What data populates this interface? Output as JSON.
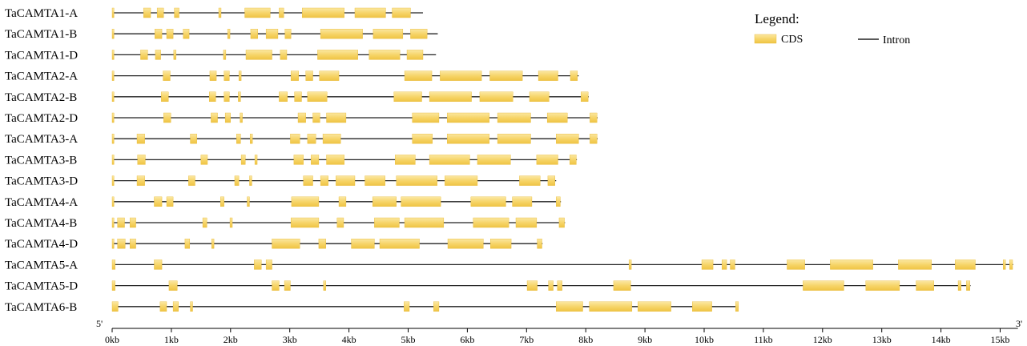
{
  "legend": {
    "title": "Legend:",
    "cds_label": "CDS",
    "intron_label": "Intron"
  },
  "axis": {
    "start_label": "5'",
    "end_label": "3'",
    "unit": "kb",
    "ticks": [
      "0kb",
      "1kb",
      "2kb",
      "3kb",
      "4kb",
      "5kb",
      "6kb",
      "7kb",
      "8kb",
      "9kb",
      "10kb",
      "11kb",
      "12kb",
      "13kb",
      "14kb",
      "15kb"
    ]
  },
  "colors": {
    "cds": "#f6d365",
    "cds_edge": "#e8b830",
    "intron": "#222222",
    "axis": "#000000"
  },
  "genes": [
    {
      "name": "TaCAMTA1-A",
      "length": 5.25,
      "exons": [
        [
          0,
          0.03
        ],
        [
          0.53,
          0.65
        ],
        [
          0.76,
          0.87
        ],
        [
          1.05,
          1.13
        ],
        [
          1.8,
          1.84
        ],
        [
          2.24,
          2.67
        ],
        [
          2.82,
          2.9
        ],
        [
          3.21,
          3.92
        ],
        [
          4.1,
          4.62
        ],
        [
          4.73,
          5.04
        ]
      ]
    },
    {
      "name": "TaCAMTA1-B",
      "length": 5.5,
      "exons": [
        [
          0,
          0.03
        ],
        [
          0.72,
          0.84
        ],
        [
          0.92,
          1.03
        ],
        [
          1.2,
          1.3
        ],
        [
          1.95,
          1.99
        ],
        [
          2.34,
          2.46
        ],
        [
          2.6,
          2.8
        ],
        [
          2.92,
          3.02
        ],
        [
          3.52,
          4.23
        ],
        [
          4.41,
          4.91
        ],
        [
          5.04,
          5.32
        ]
      ]
    },
    {
      "name": "TaCAMTA1-D",
      "length": 5.47,
      "exons": [
        [
          0,
          0.03
        ],
        [
          0.48,
          0.6
        ],
        [
          0.73,
          0.82
        ],
        [
          1.04,
          1.08
        ],
        [
          1.88,
          1.92
        ],
        [
          2.26,
          2.7
        ],
        [
          2.84,
          2.95
        ],
        [
          3.47,
          4.15
        ],
        [
          4.34,
          4.86
        ],
        [
          4.98,
          5.25
        ]
      ]
    },
    {
      "name": "TaCAMTA2-A",
      "length": 7.88,
      "exons": [
        [
          0,
          0.03
        ],
        [
          0.86,
          0.98
        ],
        [
          1.65,
          1.76
        ],
        [
          1.89,
          1.98
        ],
        [
          2.14,
          2.18
        ],
        [
          3.02,
          3.15
        ],
        [
          3.27,
          3.39
        ],
        [
          3.5,
          3.83
        ],
        [
          4.94,
          5.4
        ],
        [
          5.54,
          6.24
        ],
        [
          6.38,
          6.93
        ],
        [
          7.2,
          7.53
        ],
        [
          7.74,
          7.86
        ]
      ]
    },
    {
      "name": "TaCAMTA2-B",
      "length": 8.05,
      "exons": [
        [
          0,
          0.03
        ],
        [
          0.83,
          0.95
        ],
        [
          1.64,
          1.75
        ],
        [
          1.89,
          1.98
        ],
        [
          2.13,
          2.17
        ],
        [
          2.82,
          2.96
        ],
        [
          3.08,
          3.2
        ],
        [
          3.3,
          3.63
        ],
        [
          4.76,
          5.23
        ],
        [
          5.36,
          6.07
        ],
        [
          6.21,
          6.77
        ],
        [
          7.05,
          7.38
        ],
        [
          7.92,
          8.04
        ]
      ]
    },
    {
      "name": "TaCAMTA2-D",
      "length": 8.2,
      "exons": [
        [
          0,
          0.03
        ],
        [
          0.87,
          0.99
        ],
        [
          1.67,
          1.78
        ],
        [
          1.91,
          2.0
        ],
        [
          2.16,
          2.2
        ],
        [
          3.14,
          3.27
        ],
        [
          3.39,
          3.51
        ],
        [
          3.62,
          3.95
        ],
        [
          5.07,
          5.52
        ],
        [
          5.66,
          6.37
        ],
        [
          6.51,
          7.07
        ],
        [
          7.35,
          7.69
        ],
        [
          8.07,
          8.19
        ]
      ]
    },
    {
      "name": "TaCAMTA3-A",
      "length": 8.2,
      "exons": [
        [
          0,
          0.03
        ],
        [
          0.42,
          0.55
        ],
        [
          1.32,
          1.43
        ],
        [
          2.1,
          2.17
        ],
        [
          2.33,
          2.37
        ],
        [
          3.01,
          3.17
        ],
        [
          3.3,
          3.44
        ],
        [
          3.56,
          3.86
        ],
        [
          5.07,
          5.41
        ],
        [
          5.66,
          6.37
        ],
        [
          6.51,
          7.07
        ],
        [
          7.5,
          7.88
        ],
        [
          8.07,
          8.19
        ]
      ]
    },
    {
      "name": "TaCAMTA3-B",
      "length": 7.85,
      "exons": [
        [
          0,
          0.03
        ],
        [
          0.43,
          0.56
        ],
        [
          1.5,
          1.61
        ],
        [
          2.18,
          2.25
        ],
        [
          2.41,
          2.45
        ],
        [
          3.07,
          3.23
        ],
        [
          3.36,
          3.49
        ],
        [
          3.62,
          3.92
        ],
        [
          4.78,
          5.12
        ],
        [
          5.36,
          6.04
        ],
        [
          6.17,
          6.73
        ],
        [
          7.17,
          7.53
        ],
        [
          7.73,
          7.84
        ]
      ]
    },
    {
      "name": "TaCAMTA3-D",
      "length": 7.5,
      "exons": [
        [
          0,
          0.03
        ],
        [
          0.42,
          0.55
        ],
        [
          1.29,
          1.4
        ],
        [
          2.07,
          2.14
        ],
        [
          2.32,
          2.36
        ],
        [
          3.23,
          3.39
        ],
        [
          3.52,
          3.65
        ],
        [
          3.78,
          4.1
        ],
        [
          4.27,
          4.61
        ],
        [
          4.8,
          5.49
        ],
        [
          5.62,
          6.17
        ],
        [
          6.88,
          7.23
        ],
        [
          7.36,
          7.48
        ]
      ]
    },
    {
      "name": "TaCAMTA4-A",
      "length": 7.58,
      "exons": [
        [
          0,
          0.03
        ],
        [
          0.71,
          0.84
        ],
        [
          0.92,
          1.03
        ],
        [
          1.83,
          1.89
        ],
        [
          2.28,
          2.32
        ],
        [
          3.03,
          3.49
        ],
        [
          3.83,
          3.95
        ],
        [
          4.4,
          4.8
        ],
        [
          4.88,
          5.55
        ],
        [
          6.06,
          6.65
        ],
        [
          6.76,
          7.09
        ],
        [
          7.5,
          7.57
        ]
      ]
    },
    {
      "name": "TaCAMTA4-B",
      "length": 7.65,
      "exons": [
        [
          0,
          0.03
        ],
        [
          0.09,
          0.21
        ],
        [
          0.3,
          0.4
        ],
        [
          1.53,
          1.6
        ],
        [
          1.99,
          2.03
        ],
        [
          3.02,
          3.49
        ],
        [
          3.8,
          3.91
        ],
        [
          4.43,
          4.85
        ],
        [
          4.94,
          5.6
        ],
        [
          6.1,
          6.7
        ],
        [
          6.82,
          7.17
        ],
        [
          7.55,
          7.64
        ]
      ]
    },
    {
      "name": "TaCAMTA4-D",
      "length": 7.27,
      "exons": [
        [
          0,
          0.03
        ],
        [
          0.09,
          0.22
        ],
        [
          0.3,
          0.4
        ],
        [
          1.23,
          1.31
        ],
        [
          1.68,
          1.72
        ],
        [
          2.7,
          3.17
        ],
        [
          3.49,
          3.61
        ],
        [
          4.04,
          4.43
        ],
        [
          4.52,
          5.19
        ],
        [
          5.67,
          6.27
        ],
        [
          6.39,
          6.74
        ],
        [
          7.18,
          7.26
        ]
      ]
    },
    {
      "name": "TaCAMTA5-A",
      "length": 15.22,
      "exons": [
        [
          0,
          0.05
        ],
        [
          0.71,
          0.84
        ],
        [
          2.4,
          2.52
        ],
        [
          2.6,
          2.7
        ],
        [
          8.73,
          8.77
        ],
        [
          9.96,
          10.15
        ],
        [
          10.3,
          10.38
        ],
        [
          10.44,
          10.52
        ],
        [
          11.4,
          11.7
        ],
        [
          12.13,
          12.85
        ],
        [
          13.28,
          13.84
        ],
        [
          14.24,
          14.58
        ],
        [
          15.05,
          15.09
        ],
        [
          15.16,
          15.21
        ]
      ]
    },
    {
      "name": "TaCAMTA5-D",
      "length": 14.5,
      "exons": [
        [
          0,
          0.05
        ],
        [
          0.96,
          1.1
        ],
        [
          2.7,
          2.82
        ],
        [
          2.91,
          3.01
        ],
        [
          3.57,
          3.61
        ],
        [
          7.01,
          7.18
        ],
        [
          7.37,
          7.45
        ],
        [
          7.52,
          7.6
        ],
        [
          8.47,
          8.76
        ],
        [
          11.67,
          12.36
        ],
        [
          12.73,
          13.3
        ],
        [
          13.58,
          13.88
        ],
        [
          14.29,
          14.34
        ],
        [
          14.43,
          14.49
        ]
      ]
    },
    {
      "name": "TaCAMTA6-B",
      "length": 10.58,
      "exons": [
        [
          0,
          0.1
        ],
        [
          0.81,
          0.92
        ],
        [
          1.03,
          1.12
        ],
        [
          1.32,
          1.36
        ],
        [
          4.93,
          5.02
        ],
        [
          5.43,
          5.52
        ],
        [
          7.5,
          7.95
        ],
        [
          8.06,
          8.78
        ],
        [
          8.88,
          9.44
        ],
        [
          9.8,
          10.13
        ],
        [
          10.53,
          10.58
        ]
      ]
    }
  ]
}
